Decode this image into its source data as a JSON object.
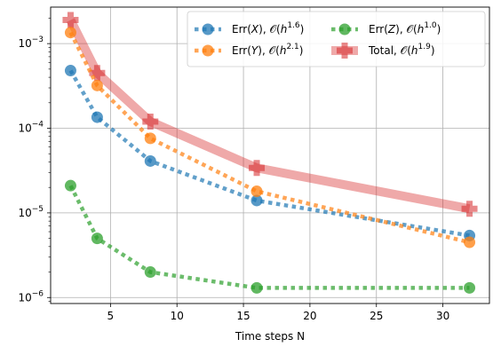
{
  "chart_data": {
    "type": "line",
    "title": "",
    "xlabel": "Time steps N",
    "ylabel": "",
    "xlim": [
      0.5,
      33.5
    ],
    "ylim": [
      8.5e-07,
      0.0027
    ],
    "yscale": "log",
    "grid": true,
    "legend_position": "top-right",
    "legend_columns": 2,
    "x_ticks": [
      5,
      10,
      15,
      20,
      25,
      30
    ],
    "x_tick_labels": [
      "5",
      "10",
      "15",
      "20",
      "25",
      "30"
    ],
    "y_ticks": [
      1e-06,
      1e-05,
      0.0001,
      0.001
    ],
    "y_tick_labels": [
      {
        "base": "10",
        "exp": "−6"
      },
      {
        "base": "10",
        "exp": "−5"
      },
      {
        "base": "10",
        "exp": "−4"
      },
      {
        "base": "10",
        "exp": "−3"
      }
    ],
    "x": [
      2,
      4,
      8,
      16,
      32
    ],
    "series": [
      {
        "name": "Err(X), 𝒪(h^1.6)",
        "legend": {
          "pre": "Err(",
          "var": "X",
          "mid": "), 𝒪(",
          "h": "h",
          "exp": "1.6",
          "post": ")"
        },
        "values": [
          0.00048,
          0.000135,
          4.1e-05,
          1.4e-05,
          5.4e-06
        ],
        "color": "#1f77b4",
        "marker": "circle",
        "style": "dotted"
      },
      {
        "name": "Err(Y), 𝒪(h^2.1)",
        "legend": {
          "pre": "Err(",
          "var": "Y",
          "mid": "), 𝒪(",
          "h": "h",
          "exp": "2.1",
          "post": ")"
        },
        "values": [
          0.00135,
          0.00032,
          7.6e-05,
          1.8e-05,
          4.5e-06
        ],
        "color": "#ff7f0e",
        "marker": "circle",
        "style": "dotted"
      },
      {
        "name": "Err(Z), 𝒪(h^1.0)",
        "legend": {
          "pre": "Err(",
          "var": "Z",
          "mid": "), 𝒪(",
          "h": "h",
          "exp": "1.0",
          "post": ")"
        },
        "values": [
          2.1e-05,
          5e-06,
          2e-06,
          1.3e-06,
          1.3e-06
        ],
        "color": "#2ca02c",
        "marker": "circle",
        "style": "dotted"
      },
      {
        "name": "Total, 𝒪(h^1.9)",
        "legend": {
          "pre": "Total, 𝒪(",
          "var": "",
          "mid": "",
          "h": "h",
          "exp": "1.9",
          "post": ")"
        },
        "values": [
          0.0019,
          0.00045,
          0.00012,
          3.4e-05,
          1.12e-05
        ],
        "color": "#d62728",
        "marker": "plus",
        "style": "solid-thick"
      }
    ]
  }
}
